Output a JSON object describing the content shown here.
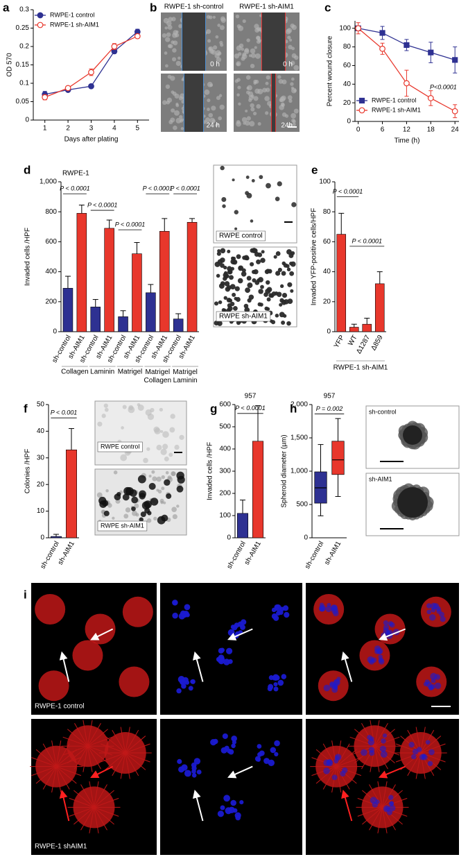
{
  "panel_labels": [
    "a",
    "b",
    "c",
    "d",
    "e",
    "f",
    "g",
    "h",
    "i"
  ],
  "images": {
    "b": {
      "columns": [
        "RWPE-1 sh-control",
        "RWPE-1 sh-AIM1"
      ],
      "times": [
        "0 h",
        "0 h",
        "24 h",
        "24h"
      ]
    },
    "d": [
      "RWPE control",
      "RWPE sh-AIM1"
    ],
    "f": [
      "RWPE control",
      "RWPE sh-AIM1"
    ],
    "h": [
      "sh-control",
      "sh-AIM1"
    ],
    "i": [
      "RWPE-1 control",
      "RWPE-1 shAIM1"
    ]
  },
  "chart_data": [
    {
      "type": "line",
      "xlabel": "Days after plating",
      "ylabel": "OD 570",
      "legend": "upper left",
      "x": [
        1,
        2,
        3,
        4,
        5
      ],
      "xlim": [
        0.5,
        5.5
      ],
      "xticks": [
        1,
        2,
        3,
        4,
        5
      ],
      "ylim": [
        0,
        0.3
      ],
      "yticks": [
        0,
        0.05,
        0.1,
        0.15,
        0.2,
        0.25,
        0.3
      ],
      "series": [
        {
          "name": "RWPE-1 control",
          "color": "#2e3192",
          "marker": "circle",
          "filled": true,
          "values": [
            0.07,
            0.082,
            0.092,
            0.187,
            0.24
          ],
          "errors": [
            0.008,
            0.004,
            0.003,
            0.006,
            0.007
          ]
        },
        {
          "name": "RWPE-1 sh-AIM1",
          "color": "#e8372c",
          "marker": "circle",
          "filled": false,
          "values": [
            0.062,
            0.087,
            0.13,
            0.2,
            0.228
          ],
          "errors": [
            0.007,
            0.004,
            0.009,
            0.008,
            0.005
          ]
        }
      ]
    },
    {
      "type": "line",
      "xlabel": "Time (h)",
      "ylabel": "Percent wound closure",
      "legend": "lower left",
      "annotations": [
        "P<0.0001"
      ],
      "x": [
        0,
        6,
        12,
        18,
        24
      ],
      "xlim": [
        -0.8,
        25
      ],
      "xticks": [
        0,
        6,
        12,
        18,
        24
      ],
      "ylim": [
        0,
        108
      ],
      "yticks": [
        0,
        20,
        40,
        60,
        80,
        100
      ],
      "series": [
        {
          "name": "RWPE-1 control",
          "color": "#2e3192",
          "marker": "square",
          "filled": true,
          "values": [
            100,
            95,
            82,
            74,
            66
          ],
          "errors": [
            0,
            7,
            6,
            11,
            14
          ]
        },
        {
          "name": "RWPE-1 sh-AIM1",
          "color": "#e8372c",
          "marker": "circle",
          "filled": false,
          "values": [
            100,
            78,
            41,
            25,
            11
          ],
          "errors": [
            6,
            6,
            14,
            8,
            7
          ]
        }
      ]
    },
    {
      "type": "bar",
      "title": "RWPE-1",
      "ylabel": "Invaded cells /HPF",
      "categories": [
        "sh-control",
        "sh-AIM1",
        "sh-control",
        "sh-AIM1",
        "sh-control",
        "sh-AIM1",
        "sh-control",
        "sh-AIM1",
        "sh-control",
        "sh-AIM1"
      ],
      "values": [
        290,
        790,
        165,
        690,
        100,
        520,
        260,
        670,
        85,
        730
      ],
      "errors": [
        80,
        55,
        50,
        55,
        40,
        75,
        55,
        85,
        35,
        25
      ],
      "colors": [
        "#2e3192",
        "#e8372c",
        "#2e3192",
        "#e8372c",
        "#2e3192",
        "#e8372c",
        "#2e3192",
        "#e8372c",
        "#2e3192",
        "#e8372c"
      ],
      "group_labels": [
        "Collagen",
        "Laminin",
        "Matrigel",
        "Matrigel Collagen",
        "Matrigel Laminin"
      ],
      "annotations": [
        "P < 0.0001",
        "P < 0.0001",
        "P < 0.0001",
        "P < 0.0001",
        "P < 0.0001"
      ],
      "ylim": [
        0,
        1000
      ],
      "yticks": [
        0,
        200,
        400,
        600,
        800,
        {
          "value": 1000,
          "label": "1,000"
        }
      ]
    },
    {
      "type": "bar",
      "ylabel": "Invaded YFP-positive cells/HPF",
      "xlabel": "RWPE-1 sh-AIM1",
      "categories": [
        "YFP",
        "WT",
        "Δ1287",
        "Δ859"
      ],
      "values": [
        65,
        3,
        5,
        32
      ],
      "errors": [
        14,
        2,
        4,
        8
      ],
      "colors": [
        "#e8372c",
        "#e8372c",
        "#e8372c",
        "#e8372c"
      ],
      "annotations": [
        "P < 0.0001",
        "P < 0.0001"
      ],
      "ylim": [
        0,
        100
      ],
      "yticks": [
        0,
        20,
        40,
        60,
        80,
        100
      ]
    },
    {
      "type": "bar",
      "ylabel": "Colonies /HPF",
      "categories": [
        "sh-control",
        "sh-AIM1"
      ],
      "values": [
        0.5,
        33
      ],
      "errors": [
        0.8,
        8
      ],
      "colors": [
        "#2e3192",
        "#e8372c"
      ],
      "annotations": [
        "P < 0.001"
      ],
      "ylim": [
        0,
        50
      ],
      "yticks": [
        0,
        10,
        20,
        30,
        40,
        50
      ]
    },
    {
      "type": "bar",
      "title": "957",
      "ylabel": "Invaded cells /HPF",
      "categories": [
        "sh-control",
        "sh-AIM1"
      ],
      "values": [
        110,
        435
      ],
      "errors": [
        60,
        160
      ],
      "colors": [
        "#2e3192",
        "#e8372c"
      ],
      "annotations": [
        "P < 0.0001"
      ],
      "ylim": [
        0,
        600
      ],
      "yticks": [
        0,
        100,
        200,
        300,
        400,
        500,
        600
      ]
    },
    {
      "type": "box",
      "title": "957",
      "ylabel": "Spheroid diameter (µm)",
      "categories": [
        "sh-control",
        "sh-AIM1"
      ],
      "boxes": [
        {
          "min": 330,
          "q1": 520,
          "median": 750,
          "q3": 990,
          "max": 1400
        },
        {
          "min": 620,
          "q1": 950,
          "median": 1170,
          "q3": 1450,
          "max": 1790
        }
      ],
      "colors": [
        "#2e3192",
        "#e8372c"
      ],
      "annotations": [
        "P = 0.002"
      ],
      "ylim": [
        0,
        2000
      ],
      "yticks": [
        0,
        500,
        {
          "value": 1000,
          "label": "1,000"
        },
        {
          "value": 1500,
          "label": "1,500"
        },
        {
          "value": 2000,
          "label": "2,000"
        }
      ]
    }
  ]
}
